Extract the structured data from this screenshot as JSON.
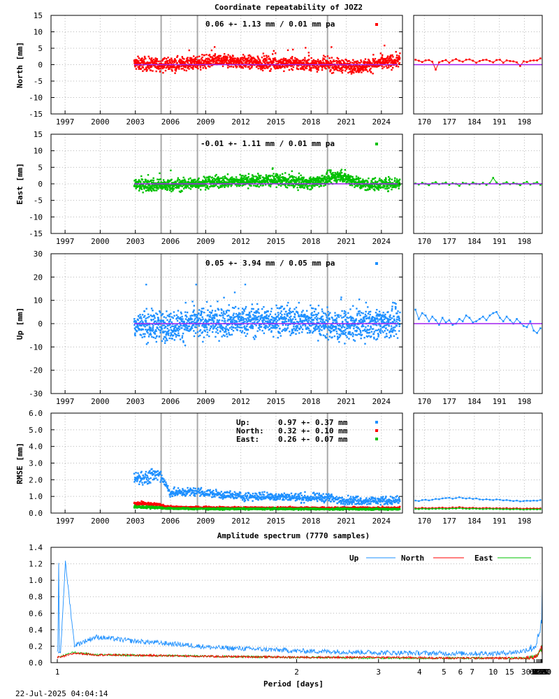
{
  "footer_timestamp": "22-Jul-2025 04:04:14",
  "colors": {
    "north": "#ff0000",
    "east": "#00c000",
    "up": "#1e90ff",
    "mean_line": "#a020f0",
    "event_line": "#a8a8a8"
  },
  "event_years": [
    2005.2,
    2008.3,
    2019.4
  ],
  "chart_data": [
    {
      "id": "north",
      "type": "scatter",
      "title": "Coordinate repeatability of JOZ2",
      "ylabel": "North [mm]",
      "ylim": [
        -15,
        15
      ],
      "yticks": [
        -15,
        -10,
        -5,
        0,
        5,
        10,
        15
      ],
      "yticklabels": [
        "-15",
        "-10",
        "-5",
        "0",
        "5",
        "10",
        "15"
      ],
      "xlim": [
        1995.8,
        2025.8
      ],
      "xticks": [
        1997,
        2000,
        2003,
        2006,
        2009,
        2012,
        2015,
        2018,
        2021,
        2024
      ],
      "xticklabels": [
        "1997",
        "2000",
        "2003",
        "2006",
        "2009",
        "2012",
        "2015",
        "2018",
        "2021",
        "2024"
      ],
      "data_start": 2002.9,
      "annotation": "0.06 +- 1.13 mm /  0.01 mm pa",
      "series": [
        {
          "x": [
            2003.0,
            2005.0,
            2008.0,
            2010.0,
            2013.0,
            2016.0,
            2019.0,
            2022.0,
            2025.5
          ],
          "y": [
            0.3,
            0.0,
            0.5,
            1.2,
            0.6,
            0.4,
            0.1,
            -0.6,
            1.3
          ],
          "spread": 1.4
        }
      ],
      "zoom": {
        "xlim": [
          167,
          203
        ],
        "xticks": [
          170,
          177,
          184,
          191,
          198
        ],
        "xticklabels": [
          "170",
          "177",
          "184",
          "191",
          "198"
        ],
        "values": [
          1.5,
          1.2,
          0.8,
          1.3,
          1.4,
          0.9,
          -1.5,
          0.7,
          1.1,
          1.4,
          0.6,
          1.3,
          1.7,
          1.2,
          0.9,
          1.5,
          1.6,
          1.2,
          0.6,
          1.1,
          1.4,
          1.5,
          1.1,
          0.7,
          1.4,
          1.5,
          0.6,
          1.3,
          1.1,
          1.0,
          0.7,
          -0.4,
          1.0,
          0.8,
          1.2,
          1.3,
          1.3,
          1.9
        ]
      }
    },
    {
      "id": "east",
      "type": "scatter",
      "ylabel": "East [mm]",
      "ylim": [
        -15,
        15
      ],
      "yticks": [
        -15,
        -10,
        -5,
        0,
        5,
        10,
        15
      ],
      "yticklabels": [
        "-15",
        "-10",
        "-5",
        "0",
        "5",
        "10",
        "15"
      ],
      "xlim": [
        1995.8,
        2025.8
      ],
      "xticks": [
        1997,
        2000,
        2003,
        2006,
        2009,
        2012,
        2015,
        2018,
        2021,
        2024
      ],
      "xticklabels": [
        "1997",
        "2000",
        "2003",
        "2006",
        "2009",
        "2012",
        "2015",
        "2018",
        "2021",
        "2024"
      ],
      "data_start": 2002.9,
      "annotation": "-0.01 +- 1.11 mm /  0.01 mm pa",
      "series": [
        {
          "x": [
            2003.0,
            2006.0,
            2009.0,
            2012.0,
            2015.0,
            2018.0,
            2020.5,
            2022.5,
            2025.5
          ],
          "y": [
            -0.2,
            -0.5,
            0.4,
            0.8,
            1.1,
            0.3,
            2.5,
            -0.3,
            0.2
          ],
          "spread": 1.3
        }
      ],
      "zoom": {
        "xlim": [
          167,
          203
        ],
        "xticks": [
          170,
          177,
          184,
          191,
          198
        ],
        "xticklabels": [
          "170",
          "177",
          "184",
          "191",
          "198"
        ],
        "values": [
          0.1,
          -0.2,
          0.3,
          0.0,
          -0.4,
          0.2,
          0.5,
          -0.1,
          0.1,
          0.4,
          -0.3,
          0.2,
          0.0,
          -0.6,
          0.3,
          0.1,
          -0.2,
          0.4,
          0.0,
          -0.1,
          0.3,
          -0.3,
          0.2,
          1.8,
          0.4,
          -0.2,
          0.1,
          0.5,
          -0.1,
          0.3,
          0.0,
          -0.4,
          0.2,
          0.6,
          -0.2,
          0.1,
          0.5,
          -0.3
        ]
      }
    },
    {
      "id": "up",
      "type": "scatter",
      "ylabel": "Up [mm]",
      "ylim": [
        -30,
        30
      ],
      "yticks": [
        -30,
        -20,
        -10,
        0,
        10,
        20,
        30
      ],
      "yticklabels": [
        "-30",
        "-20",
        "-10",
        "0",
        "10",
        "20",
        "30"
      ],
      "xlim": [
        1995.8,
        2025.8
      ],
      "xticks": [
        1997,
        2000,
        2003,
        2006,
        2009,
        2012,
        2015,
        2018,
        2021,
        2024
      ],
      "xticklabels": [
        "1997",
        "2000",
        "2003",
        "2006",
        "2009",
        "2012",
        "2015",
        "2018",
        "2021",
        "2024"
      ],
      "data_start": 2002.9,
      "annotation": "0.05 +- 3.94 mm /  0.05 mm pa",
      "series": [
        {
          "x": [
            2003.0,
            2006.0,
            2009.0,
            2012.0,
            2015.0,
            2018.0,
            2020.5,
            2022.5,
            2025.5
          ],
          "y": [
            -0.5,
            -1.0,
            0.5,
            1.0,
            1.5,
            1.0,
            -1.5,
            0.0,
            0.5
          ],
          "spread": 4.5
        }
      ],
      "zoom": {
        "xlim": [
          167,
          203
        ],
        "xticks": [
          170,
          177,
          184,
          191,
          198
        ],
        "xticklabels": [
          "170",
          "177",
          "184",
          "191",
          "198"
        ],
        "values": [
          6.0,
          2.0,
          4.5,
          3.5,
          1.0,
          3.0,
          1.5,
          -0.5,
          2.5,
          0.5,
          1.5,
          -0.5,
          0.0,
          2.0,
          1.0,
          3.5,
          2.5,
          0.5,
          1.0,
          2.0,
          3.0,
          1.5,
          3.5,
          4.5,
          5.0,
          2.5,
          1.0,
          3.0,
          1.5,
          0.0,
          2.0,
          0.5,
          -1.0,
          -1.5,
          1.0,
          -3.0,
          -4.0,
          -2.0
        ]
      }
    },
    {
      "id": "rmse",
      "type": "scatter",
      "ylabel": "RMSE [mm]",
      "ylim": [
        0,
        6
      ],
      "yticks": [
        0,
        1,
        2,
        3,
        4,
        5,
        6
      ],
      "yticklabels": [
        "0.0",
        "1.0",
        "2.0",
        "3.0",
        "4.0",
        "5.0",
        "6.0"
      ],
      "xlim": [
        1995.8,
        2025.8
      ],
      "xticks": [
        1997,
        2000,
        2003,
        2006,
        2009,
        2012,
        2015,
        2018,
        2021,
        2024
      ],
      "xticklabels": [
        "1997",
        "2000",
        "2003",
        "2006",
        "2009",
        "2012",
        "2015",
        "2018",
        "2021",
        "2024"
      ],
      "legend": [
        {
          "name": "Up:",
          "stats": "0.97 +- 0.37 mm"
        },
        {
          "name": "North:",
          "stats": "0.32 +- 0.10 mm"
        },
        {
          "name": "East:",
          "stats": "0.26 +- 0.07 mm"
        }
      ],
      "series": [
        {
          "name": "Up:",
          "x": [
            2002.9,
            2004.0,
            2005.2,
            2006.0,
            2008.3,
            2009.0,
            2012.0,
            2015.0,
            2018.0,
            2019.4,
            2020.0,
            2022.0,
            2025.5
          ],
          "y": [
            2.0,
            2.1,
            2.2,
            1.2,
            1.3,
            1.2,
            1.0,
            1.0,
            0.9,
            0.95,
            0.8,
            0.75,
            0.75
          ],
          "spread": 0.3
        },
        {
          "name": "North:",
          "x": [
            2002.9,
            2004.0,
            2005.2,
            2006.0,
            2010.0,
            2015.0,
            2020.0,
            2025.5
          ],
          "y": [
            0.55,
            0.5,
            0.45,
            0.35,
            0.32,
            0.3,
            0.3,
            0.3
          ],
          "spread": 0.08
        },
        {
          "name": "East:",
          "x": [
            2002.9,
            2004.0,
            2005.2,
            2006.0,
            2010.0,
            2015.0,
            2020.0,
            2025.5
          ],
          "y": [
            0.35,
            0.33,
            0.3,
            0.27,
            0.25,
            0.25,
            0.24,
            0.24
          ],
          "spread": 0.06
        }
      ],
      "zoom": {
        "xlim": [
          167,
          203
        ],
        "xticks": [
          170,
          177,
          184,
          191,
          198
        ],
        "xticklabels": [
          "170",
          "177",
          "184",
          "191",
          "198"
        ],
        "up": [
          0.75,
          0.72,
          0.78,
          0.8,
          0.76,
          0.8,
          0.85,
          0.83,
          0.88,
          0.9,
          0.92,
          0.86,
          0.9,
          0.95,
          0.9,
          0.87,
          0.9,
          0.85,
          0.88,
          0.82,
          0.8,
          0.83,
          0.8,
          0.78,
          0.82,
          0.8,
          0.76,
          0.78,
          0.75,
          0.72,
          0.75,
          0.7,
          0.72,
          0.74,
          0.73,
          0.75,
          0.74,
          0.78
        ],
        "north": [
          0.3,
          0.28,
          0.32,
          0.3,
          0.29,
          0.31,
          0.3,
          0.32,
          0.33,
          0.3,
          0.31,
          0.34,
          0.32,
          0.36,
          0.33,
          0.3,
          0.31,
          0.32,
          0.3,
          0.29,
          0.3,
          0.31,
          0.3,
          0.28,
          0.3,
          0.29,
          0.28,
          0.3,
          0.27,
          0.28,
          0.29,
          0.27,
          0.26,
          0.28,
          0.27,
          0.28,
          0.27,
          0.28
        ],
        "east": [
          0.25,
          0.24,
          0.26,
          0.25,
          0.24,
          0.26,
          0.25,
          0.27,
          0.26,
          0.25,
          0.26,
          0.28,
          0.27,
          0.3,
          0.27,
          0.26,
          0.25,
          0.27,
          0.26,
          0.25,
          0.24,
          0.25,
          0.26,
          0.24,
          0.25,
          0.24,
          0.23,
          0.24,
          0.22,
          0.23,
          0.24,
          0.22,
          0.21,
          0.22,
          0.22,
          0.23,
          0.22,
          0.23
        ]
      }
    },
    {
      "id": "spectrum",
      "type": "line",
      "title": "Amplitude spectrum (7770 samples)",
      "xlabel": "Period [days]",
      "xscale": "reciprocal",
      "xlim": [
        1,
        8760
      ],
      "ylim": [
        0,
        1.4
      ],
      "yticks": [
        0,
        0.2,
        0.4,
        0.6,
        0.8,
        1.0,
        1.2,
        1.4
      ],
      "yticklabels": [
        "0.0",
        "0.2",
        "0.4",
        "0.6",
        "0.8",
        "1.0",
        "1.2",
        "1.4"
      ],
      "xticks": [
        1,
        2,
        3,
        4,
        5,
        6,
        7,
        10,
        15,
        30,
        61,
        91,
        122,
        183,
        365,
        730,
        2190,
        4380,
        8760
      ],
      "xticklabels": [
        "1",
        "2",
        "3",
        "4",
        "5",
        "6",
        "7",
        "10",
        "15",
        "30",
        "61",
        "91",
        "122",
        "183",
        "365",
        "730",
        "2190",
        "4380",
        "8760"
      ],
      "legend_position": "top-right",
      "series": [
        {
          "name": "Up",
          "x": [
            1.02,
            1.03,
            1.05,
            1.1,
            1.2,
            1.5,
            2,
            3,
            5,
            10,
            20,
            30,
            61,
            91,
            122,
            183,
            250,
            300,
            330,
            365,
            400,
            450,
            500,
            600,
            730,
            850,
            1000,
            1250,
            1500,
            1800,
            2190,
            2600,
            3500,
            4380,
            6000,
            8760
          ],
          "y": [
            0.12,
            1.21,
            0.2,
            0.3,
            0.25,
            0.17,
            0.13,
            0.11,
            0.1,
            0.1,
            0.12,
            0.14,
            0.17,
            0.23,
            0.3,
            0.3,
            0.35,
            0.42,
            0.5,
            0.8,
            0.45,
            0.55,
            0.4,
            0.25,
            0.3,
            0.45,
            0.5,
            0.6,
            0.85,
            0.7,
            1.2,
            0.8,
            0.25,
            0.15,
            0.5,
            0.92
          ],
          "noise": 0.06
        },
        {
          "name": "North",
          "x": [
            1.02,
            1.05,
            1.1,
            1.5,
            2,
            3,
            5,
            10,
            20,
            30,
            61,
            91,
            122,
            183,
            250,
            365,
            500,
            730,
            1000,
            1500,
            2190,
            2600,
            4380,
            8760
          ],
          "y": [
            0.06,
            0.11,
            0.09,
            0.07,
            0.06,
            0.06,
            0.05,
            0.05,
            0.05,
            0.05,
            0.06,
            0.07,
            0.09,
            0.11,
            0.16,
            0.2,
            0.15,
            0.18,
            0.22,
            0.12,
            0.22,
            0.29,
            0.17,
            0.05
          ],
          "noise": 0.025
        },
        {
          "name": "East",
          "x": [
            1.02,
            1.05,
            1.1,
            1.5,
            2,
            3,
            5,
            10,
            20,
            30,
            61,
            91,
            122,
            183,
            250,
            365,
            500,
            730,
            1000,
            1500,
            2190,
            2600,
            4380,
            8760
          ],
          "y": [
            0.07,
            0.12,
            0.09,
            0.07,
            0.06,
            0.05,
            0.05,
            0.05,
            0.05,
            0.05,
            0.06,
            0.07,
            0.1,
            0.13,
            0.17,
            0.13,
            0.15,
            0.14,
            0.26,
            0.12,
            0.25,
            0.27,
            0.23,
            0.19
          ],
          "noise": 0.025
        }
      ]
    }
  ]
}
